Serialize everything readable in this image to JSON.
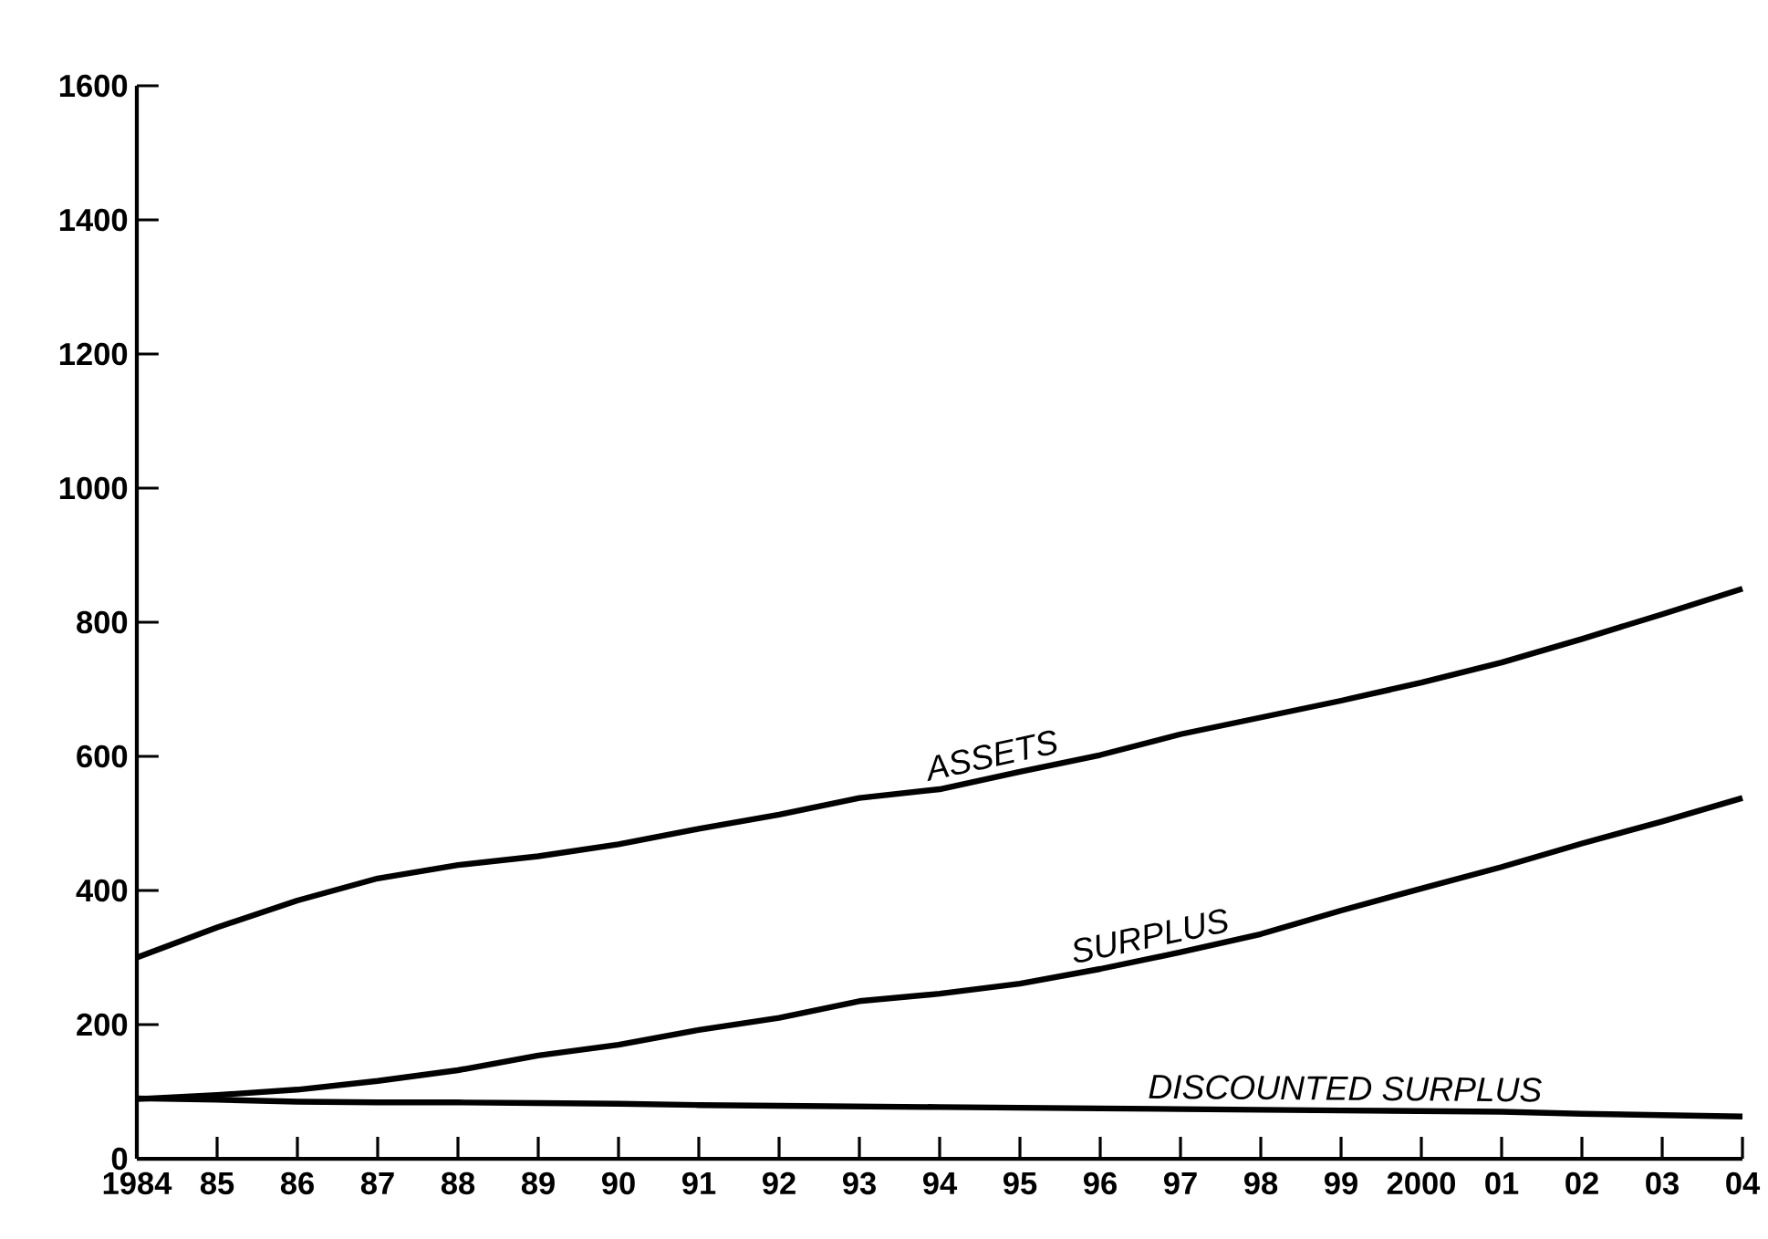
{
  "chart_data": {
    "type": "line",
    "x": [
      1984,
      1985,
      1986,
      1987,
      1988,
      1989,
      1990,
      1991,
      1992,
      1993,
      1994,
      1995,
      1996,
      1997,
      1998,
      1999,
      2000,
      2001,
      2002,
      2003,
      2004
    ],
    "series": [
      {
        "name": "ASSETS",
        "color": "#000000",
        "values": [
          300,
          345,
          385,
          418,
          438,
          451,
          469,
          492,
          513,
          538,
          551,
          577,
          602,
          633,
          658,
          683,
          710,
          740,
          775,
          812,
          850
        ]
      },
      {
        "name": "SURPLUS",
        "color": "#000000",
        "values": [
          89,
          95,
          103,
          116,
          132,
          154,
          170,
          192,
          210,
          235,
          246,
          261,
          283,
          308,
          335,
          370,
          403,
          435,
          470,
          503,
          538
        ]
      },
      {
        "name": "DISCOUNTED SURPLUS",
        "color": "#000000",
        "values": [
          90,
          88,
          85,
          84,
          84,
          83,
          82,
          80,
          79,
          78,
          77,
          76,
          75,
          74,
          73,
          72,
          71,
          70,
          67,
          65,
          63
        ]
      }
    ],
    "xlim": [
      1984,
      2004
    ],
    "xticks": [
      1984,
      {
        "value": 1985,
        "label": "85"
      },
      {
        "value": 1986,
        "label": "86"
      },
      {
        "value": 1987,
        "label": "87"
      },
      {
        "value": 1988,
        "label": "88"
      },
      {
        "value": 1989,
        "label": "89"
      },
      {
        "value": 1990,
        "label": "90"
      },
      {
        "value": 1991,
        "label": "91"
      },
      {
        "value": 1992,
        "label": "92"
      },
      {
        "value": 1993,
        "label": "93"
      },
      {
        "value": 1994,
        "label": "94"
      },
      {
        "value": 1995,
        "label": "95"
      },
      {
        "value": 1996,
        "label": "96"
      },
      {
        "value": 1997,
        "label": "97"
      },
      {
        "value": 1998,
        "label": "98"
      },
      {
        "value": 1999,
        "label": "99"
      },
      2000,
      {
        "value": 2001,
        "label": "01"
      },
      {
        "value": 2002,
        "label": "02"
      },
      {
        "value": 2003,
        "label": "03"
      },
      {
        "value": 2004,
        "label": "04"
      }
    ],
    "ylim": [
      0,
      1600
    ],
    "yticks": [
      0,
      200,
      400,
      600,
      800,
      1000,
      1200,
      1400,
      1600
    ],
    "line_style": "solid"
  }
}
